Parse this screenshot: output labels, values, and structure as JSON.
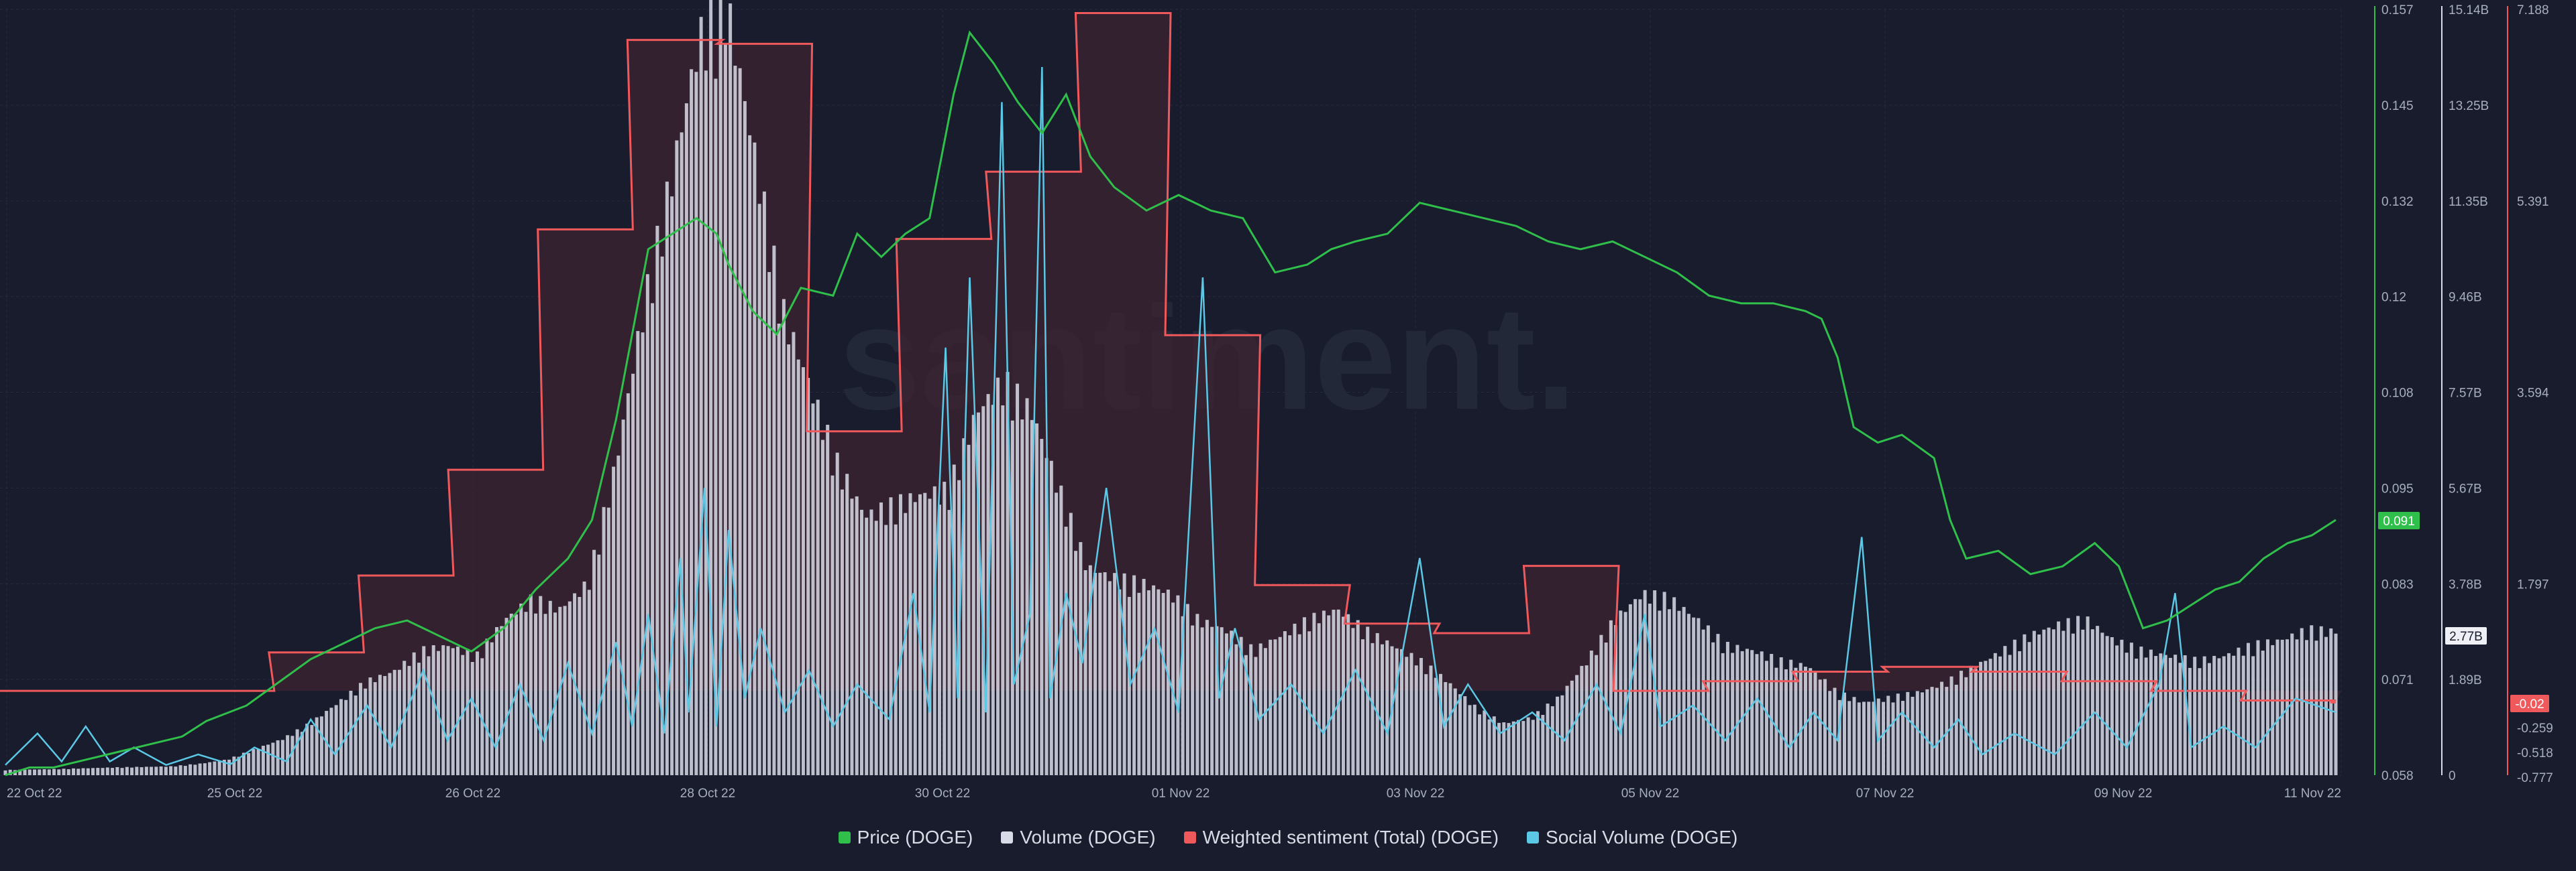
{
  "colors": {
    "background": "#181c2c",
    "price": "#2fbf4a",
    "volume": "#d9dbe8",
    "sentiment": "#f0595c",
    "sentiment_fill": "#3d2330",
    "social": "#5bc8e6",
    "grid": "#262b3c",
    "tick": "#a7aebd"
  },
  "legend": [
    {
      "label": "Price (DOGE)",
      "color": "#2fbf4a"
    },
    {
      "label": "Volume (DOGE)",
      "color": "#d9dbe8"
    },
    {
      "label": "Weighted sentiment (Total) (DOGE)",
      "color": "#f0595c"
    },
    {
      "label": "Social Volume (DOGE)",
      "color": "#5bc8e6"
    }
  ],
  "watermark": "santiment.",
  "chart_data": {
    "type": "line",
    "x_labels": [
      "22 Oct 22",
      "25 Oct 22",
      "26 Oct 22",
      "28 Oct 22",
      "30 Oct 22",
      "01 Nov 22",
      "03 Nov 22",
      "05 Nov 22",
      "07 Nov 22",
      "09 Nov 22",
      "11 Nov 22"
    ],
    "x_range": [
      "2022-10-22",
      "2022-11-11"
    ],
    "grid": true,
    "axes": {
      "price": {
        "ticks": [
          "0.157",
          "0.145",
          "0.132",
          "0.12",
          "0.108",
          "0.095",
          "0.083",
          "0.071",
          "0.058"
        ],
        "range": [
          0.058,
          0.157
        ],
        "current": "0.091"
      },
      "volume": {
        "ticks": [
          "15.14B",
          "13.25B",
          "11.35B",
          "9.46B",
          "7.57B",
          "5.67B",
          "3.78B",
          "1.89B",
          "0"
        ],
        "range": [
          0,
          15.14
        ],
        "unit": "B",
        "current": "2.77B"
      },
      "sentiment": {
        "ticks": [
          "7.188",
          "5.391",
          "3.594",
          "1.797",
          "-0.259",
          "-0.518",
          "-0.777"
        ],
        "range": [
          -0.777,
          7.188
        ],
        "current": "-0.02"
      }
    },
    "series": [
      {
        "name": "Price (DOGE)",
        "axis": "price",
        "type": "line",
        "points": [
          [
            0,
            0.058
          ],
          [
            0.3,
            0.059
          ],
          [
            0.6,
            0.059
          ],
          [
            1.0,
            0.06
          ],
          [
            1.4,
            0.061
          ],
          [
            1.8,
            0.062
          ],
          [
            2.2,
            0.063
          ],
          [
            2.5,
            0.065
          ],
          [
            3.0,
            0.067
          ],
          [
            3.4,
            0.07
          ],
          [
            3.8,
            0.073
          ],
          [
            4.2,
            0.075
          ],
          [
            4.6,
            0.077
          ],
          [
            5.0,
            0.078
          ],
          [
            5.4,
            0.076
          ],
          [
            5.8,
            0.074
          ],
          [
            6.2,
            0.077
          ],
          [
            6.6,
            0.082
          ],
          [
            7.0,
            0.086
          ],
          [
            7.3,
            0.091
          ],
          [
            7.6,
            0.104
          ],
          [
            8.0,
            0.126
          ],
          [
            8.3,
            0.128
          ],
          [
            8.6,
            0.13
          ],
          [
            8.85,
            0.128
          ],
          [
            9.0,
            0.124
          ],
          [
            9.3,
            0.118
          ],
          [
            9.6,
            0.115
          ],
          [
            9.9,
            0.121
          ],
          [
            10.3,
            0.12
          ],
          [
            10.6,
            0.128
          ],
          [
            10.9,
            0.125
          ],
          [
            11.2,
            0.128
          ],
          [
            11.5,
            0.13
          ],
          [
            11.8,
            0.146
          ],
          [
            12.0,
            0.154
          ],
          [
            12.3,
            0.15
          ],
          [
            12.6,
            0.145
          ],
          [
            12.9,
            0.141
          ],
          [
            13.2,
            0.146
          ],
          [
            13.5,
            0.138
          ],
          [
            13.8,
            0.134
          ],
          [
            14.2,
            0.131
          ],
          [
            14.6,
            0.133
          ],
          [
            15.0,
            0.131
          ],
          [
            15.4,
            0.13
          ],
          [
            15.8,
            0.123
          ],
          [
            16.2,
            0.124
          ],
          [
            16.5,
            0.126
          ],
          [
            16.8,
            0.127
          ],
          [
            17.2,
            0.128
          ],
          [
            17.6,
            0.132
          ],
          [
            18.0,
            0.131
          ],
          [
            18.4,
            0.13
          ],
          [
            18.8,
            0.129
          ],
          [
            19.2,
            0.127
          ],
          [
            19.6,
            0.126
          ],
          [
            20.0,
            0.127
          ],
          [
            20.4,
            0.125
          ],
          [
            20.8,
            0.123
          ],
          [
            21.2,
            0.12
          ],
          [
            21.6,
            0.119
          ],
          [
            22.0,
            0.119
          ],
          [
            22.4,
            0.118
          ],
          [
            22.6,
            0.117
          ],
          [
            22.8,
            0.112
          ],
          [
            23.0,
            0.103
          ],
          [
            23.3,
            0.101
          ],
          [
            23.6,
            0.102
          ],
          [
            24.0,
            0.099
          ],
          [
            24.2,
            0.091
          ],
          [
            24.4,
            0.086
          ],
          [
            24.8,
            0.087
          ],
          [
            25.2,
            0.084
          ],
          [
            25.6,
            0.085
          ],
          [
            26.0,
            0.088
          ],
          [
            26.3,
            0.085
          ],
          [
            26.6,
            0.077
          ],
          [
            26.9,
            0.078
          ],
          [
            27.2,
            0.08
          ],
          [
            27.5,
            0.082
          ],
          [
            27.8,
            0.083
          ],
          [
            28.1,
            0.086
          ],
          [
            28.4,
            0.088
          ],
          [
            28.7,
            0.089
          ],
          [
            29.0,
            0.091
          ]
        ]
      },
      {
        "name": "Volume (DOGE)",
        "axis": "volume",
        "type": "area",
        "points": [
          [
            0,
            0.1
          ],
          [
            1.0,
            0.12
          ],
          [
            2.0,
            0.15
          ],
          [
            3.0,
            0.17
          ],
          [
            3.5,
            0.22
          ],
          [
            4.0,
            0.3
          ],
          [
            4.5,
            0.5
          ],
          [
            5.0,
            0.7
          ],
          [
            5.5,
            1.0
          ],
          [
            6.0,
            1.4
          ],
          [
            6.5,
            1.8
          ],
          [
            7.0,
            2.0
          ],
          [
            7.5,
            2.4
          ],
          [
            8.0,
            2.5
          ],
          [
            8.5,
            2.3
          ],
          [
            9.0,
            3.0
          ],
          [
            9.5,
            3.4
          ],
          [
            10.0,
            3.2
          ],
          [
            10.5,
            3.7
          ],
          [
            11.0,
            6.0
          ],
          [
            11.5,
            9.0
          ],
          [
            12.0,
            11.5
          ],
          [
            12.5,
            14.2
          ],
          [
            13.0,
            14.9
          ],
          [
            13.5,
            12.0
          ],
          [
            14.0,
            9.0
          ],
          [
            14.5,
            7.5
          ],
          [
            15.0,
            6.0
          ],
          [
            15.5,
            5.0
          ],
          [
            16.0,
            5.2
          ],
          [
            16.5,
            5.4
          ],
          [
            17.0,
            5.5
          ],
          [
            17.5,
            7.0
          ],
          [
            18.0,
            7.6
          ],
          [
            18.5,
            7.0
          ],
          [
            19.0,
            5.5
          ],
          [
            19.5,
            4.0
          ],
          [
            20.0,
            3.8
          ],
          [
            20.5,
            3.7
          ],
          [
            21.0,
            3.5
          ],
          [
            21.5,
            3.0
          ],
          [
            22.0,
            2.8
          ],
          [
            22.5,
            2.4
          ],
          [
            23.0,
            2.7
          ],
          [
            23.5,
            3.0
          ],
          [
            24.0,
            3.2
          ],
          [
            24.5,
            2.8
          ],
          [
            25.0,
            2.5
          ],
          [
            25.5,
            2.2
          ],
          [
            26.0,
            1.8
          ],
          [
            26.5,
            1.3
          ],
          [
            27.0,
            1.0
          ],
          [
            27.5,
            1.1
          ],
          [
            28.0,
            1.5
          ],
          [
            28.5,
            2.2
          ],
          [
            29.0,
            3.0
          ],
          [
            29.5,
            3.5
          ],
          [
            30.0,
            3.4
          ],
          [
            30.5,
            3.0
          ],
          [
            31.0,
            2.5
          ],
          [
            31.5,
            2.4
          ],
          [
            32.0,
            2.2
          ],
          [
            32.5,
            2.1
          ],
          [
            33.0,
            1.6
          ],
          [
            33.5,
            1.4
          ],
          [
            34.0,
            1.5
          ],
          [
            34.5,
            1.6
          ],
          [
            35.0,
            1.8
          ],
          [
            35.5,
            2.1
          ],
          [
            36.0,
            2.4
          ],
          [
            36.5,
            2.7
          ],
          [
            37.0,
            2.9
          ],
          [
            37.5,
            3.0
          ],
          [
            38.0,
            2.6
          ],
          [
            38.5,
            2.4
          ],
          [
            39.0,
            2.3
          ],
          [
            39.5,
            2.2
          ],
          [
            40.0,
            2.3
          ],
          [
            40.5,
            2.5
          ],
          [
            41.0,
            2.6
          ],
          [
            41.5,
            2.8
          ],
          [
            42.0,
            2.77
          ]
        ]
      },
      {
        "name": "Weighted sentiment (Total) (DOGE)",
        "axis": "sentiment",
        "type": "step",
        "points": [
          [
            0,
            0.1
          ],
          [
            1,
            0.1
          ],
          [
            2,
            0.1
          ],
          [
            3,
            0.5
          ],
          [
            4,
            1.3
          ],
          [
            5,
            2.4
          ],
          [
            6,
            4.9
          ],
          [
            7,
            6.87
          ],
          [
            8,
            6.83
          ],
          [
            9,
            2.8
          ],
          [
            10,
            4.8
          ],
          [
            11,
            5.5
          ],
          [
            12,
            7.15
          ],
          [
            13,
            3.8
          ],
          [
            14,
            1.2
          ],
          [
            15,
            0.8
          ],
          [
            16,
            0.7
          ],
          [
            17,
            1.4
          ],
          [
            18,
            0.1
          ],
          [
            19,
            0.2
          ],
          [
            20,
            0.3
          ],
          [
            21,
            0.35
          ],
          [
            22,
            0.3
          ],
          [
            23,
            0.2
          ],
          [
            24,
            0.1
          ],
          [
            25,
            0.0
          ],
          [
            26,
            -0.02
          ]
        ]
      },
      {
        "name": "Social Volume (DOGE)",
        "axis": "social",
        "type": "line",
        "points": [
          [
            0,
            0.5
          ],
          [
            0.4,
            5
          ],
          [
            0.7,
            1
          ],
          [
            1.0,
            6
          ],
          [
            1.3,
            1
          ],
          [
            1.6,
            3
          ],
          [
            2.0,
            0.5
          ],
          [
            2.4,
            2
          ],
          [
            2.8,
            0.6
          ],
          [
            3.1,
            3
          ],
          [
            3.5,
            1
          ],
          [
            3.8,
            7
          ],
          [
            4.1,
            2
          ],
          [
            4.5,
            9
          ],
          [
            4.8,
            3
          ],
          [
            5.2,
            14
          ],
          [
            5.5,
            4
          ],
          [
            5.8,
            10
          ],
          [
            6.1,
            3
          ],
          [
            6.4,
            12
          ],
          [
            6.7,
            4
          ],
          [
            7.0,
            15
          ],
          [
            7.3,
            5
          ],
          [
            7.6,
            18
          ],
          [
            7.8,
            6
          ],
          [
            8.0,
            22
          ],
          [
            8.2,
            5
          ],
          [
            8.4,
            30
          ],
          [
            8.5,
            8
          ],
          [
            8.7,
            40
          ],
          [
            8.85,
            6
          ],
          [
            9.0,
            34
          ],
          [
            9.2,
            10
          ],
          [
            9.4,
            20
          ],
          [
            9.7,
            8
          ],
          [
            10.0,
            14
          ],
          [
            10.3,
            6
          ],
          [
            10.6,
            12
          ],
          [
            11.0,
            7
          ],
          [
            11.3,
            25
          ],
          [
            11.5,
            8
          ],
          [
            11.7,
            60
          ],
          [
            11.85,
            10
          ],
          [
            12.0,
            70
          ],
          [
            12.2,
            8
          ],
          [
            12.4,
            95
          ],
          [
            12.55,
            12
          ],
          [
            12.75,
            22
          ],
          [
            12.9,
            100
          ],
          [
            13.0,
            10
          ],
          [
            13.2,
            25
          ],
          [
            13.4,
            15
          ],
          [
            13.7,
            40
          ],
          [
            14.0,
            12
          ],
          [
            14.3,
            20
          ],
          [
            14.6,
            8
          ],
          [
            14.9,
            70
          ],
          [
            15.1,
            10
          ],
          [
            15.3,
            20
          ],
          [
            15.6,
            7
          ],
          [
            16.0,
            12
          ],
          [
            16.4,
            5
          ],
          [
            16.8,
            14
          ],
          [
            17.2,
            5
          ],
          [
            17.6,
            30
          ],
          [
            17.9,
            6
          ],
          [
            18.2,
            12
          ],
          [
            18.6,
            5
          ],
          [
            19.0,
            8
          ],
          [
            19.4,
            4
          ],
          [
            19.8,
            12
          ],
          [
            20.1,
            5
          ],
          [
            20.4,
            22
          ],
          [
            20.6,
            6
          ],
          [
            21.0,
            9
          ],
          [
            21.4,
            4
          ],
          [
            21.8,
            10
          ],
          [
            22.2,
            3
          ],
          [
            22.5,
            8
          ],
          [
            22.8,
            4
          ],
          [
            23.1,
            33
          ],
          [
            23.3,
            4
          ],
          [
            23.6,
            8
          ],
          [
            24.0,
            3
          ],
          [
            24.3,
            7
          ],
          [
            24.6,
            2
          ],
          [
            25.0,
            5
          ],
          [
            25.5,
            2
          ],
          [
            26.0,
            8
          ],
          [
            26.4,
            3
          ],
          [
            26.8,
            12
          ],
          [
            27.0,
            25
          ],
          [
            27.2,
            3
          ],
          [
            27.6,
            6
          ],
          [
            28.0,
            3
          ],
          [
            28.5,
            10
          ],
          [
            29.0,
            8
          ]
        ]
      }
    ]
  }
}
